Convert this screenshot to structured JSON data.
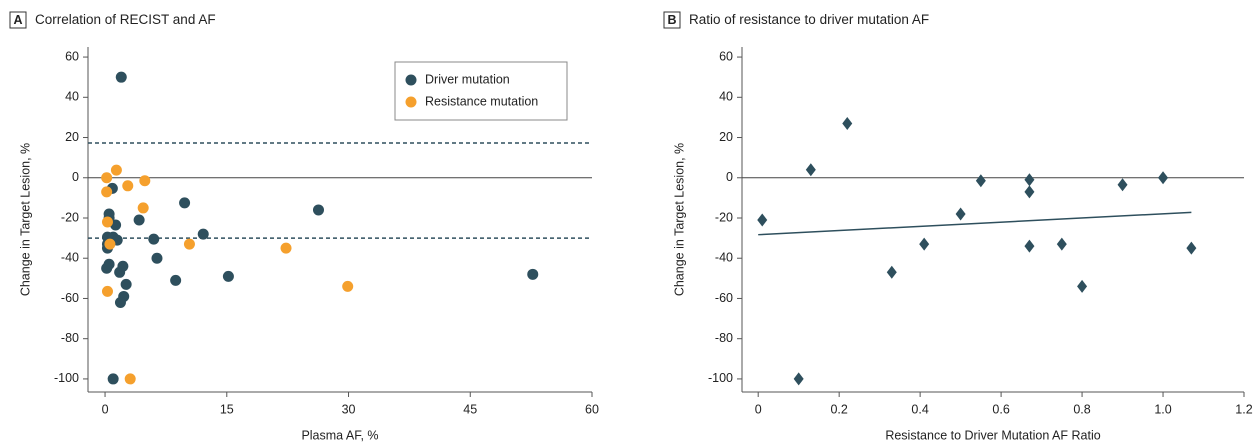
{
  "chart_data": [
    {
      "type": "scatter",
      "panel": "A",
      "title": "Correlation of RECIST and AF",
      "xlabel": "Plasma AF, %",
      "ylabel": "Change in Target Lesion, %",
      "xlim": [
        -2.1,
        60
      ],
      "ylim": [
        -106.5,
        65
      ],
      "xticks": [
        0,
        15,
        30,
        45,
        60
      ],
      "yticks": [
        -100,
        -80,
        -60,
        -40,
        -20,
        0,
        20,
        40,
        60
      ],
      "legend": "upper right",
      "marker": "circle",
      "hlines": [
        {
          "y": 0,
          "style": "solid"
        },
        {
          "y": 17.3,
          "style": "dashed"
        },
        {
          "y": -30,
          "style": "dashed"
        }
      ],
      "series": [
        {
          "name": "Driver mutation",
          "color": "#2e4f5d",
          "x": [
            2.0,
            0.9,
            0.5,
            0.5,
            0.3,
            0.3,
            0.3,
            1.0,
            1.3,
            1.5,
            0.5,
            0.2,
            1.8,
            2.2,
            2.6,
            2.3,
            1.9,
            4.2,
            6.0,
            6.4,
            9.8,
            12.1,
            8.7,
            15.2,
            26.3,
            52.7,
            1.0
          ],
          "values": [
            50,
            -5.3,
            -18,
            -20,
            -29.5,
            -33,
            -35,
            -29.5,
            -23.5,
            -31,
            -43,
            -45,
            -47,
            -44,
            -53,
            -59,
            -62,
            -21,
            -30.5,
            -40,
            -12.5,
            -28,
            -51,
            -49,
            -16,
            -48,
            -100
          ]
        },
        {
          "name": "Resistance mutation",
          "color": "#f5a02d",
          "x": [
            0.2,
            0.2,
            1.4,
            2.8,
            4.7,
            4.9,
            0.3,
            0.6,
            0.3,
            10.4,
            22.3,
            29.9,
            3.1
          ],
          "values": [
            0,
            -7,
            3.8,
            -4,
            -15,
            -1.5,
            -22,
            -33,
            -56.5,
            -33,
            -35,
            -54,
            -100
          ]
        }
      ]
    },
    {
      "type": "scatter",
      "panel": "B",
      "title": "Ratio of resistance to driver mutation AF",
      "xlabel": "Resistance to Driver Mutation AF Ratio",
      "ylabel": "Change in Target Lesion, %",
      "xlim": [
        -0.04,
        1.2
      ],
      "ylim": [
        -106.5,
        65
      ],
      "xticks": [
        0,
        0.2,
        0.4,
        0.6,
        0.8,
        {
          "value": 1,
          "label": "1.0"
        },
        1.2
      ],
      "yticks": [
        -100,
        -80,
        -60,
        -40,
        -20,
        0,
        20,
        40,
        60
      ],
      "marker": "diamond",
      "hlines": [
        {
          "y": 0,
          "style": "solid"
        }
      ],
      "trendline": {
        "x": [
          0,
          1.07
        ],
        "y": [
          -28.3,
          -17.2
        ],
        "color": "#2e4f5d"
      },
      "series": [
        {
          "color": "#2e4f5d",
          "x": [
            0.01,
            0.1,
            0.13,
            0.22,
            0.33,
            0.41,
            0.5,
            0.55,
            0.67,
            0.67,
            0.67,
            0.75,
            0.8,
            0.9,
            1.0,
            1.07
          ],
          "values": [
            -21,
            -100,
            4,
            27,
            -47,
            -33,
            -18,
            -1.5,
            -1,
            -7,
            -34,
            -33,
            -54,
            -3.5,
            0,
            -35
          ]
        }
      ]
    }
  ]
}
